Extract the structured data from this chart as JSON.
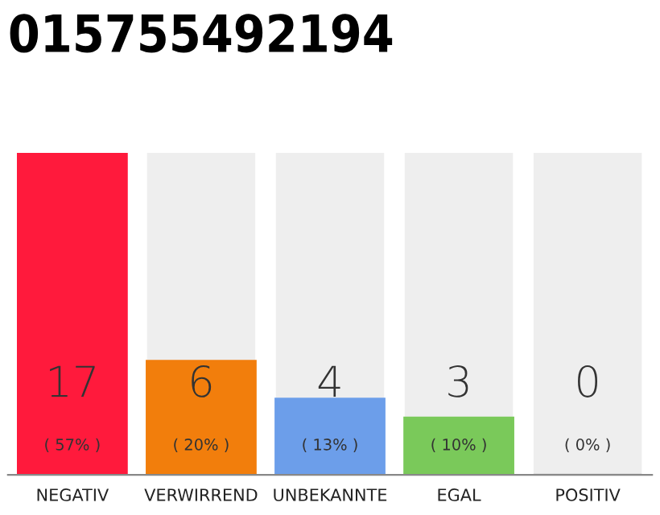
{
  "chart_data": {
    "type": "bar",
    "title": "015755492194",
    "categories": [
      "NEGATIV",
      "VERWIRREND",
      "UNBEKANNTE",
      "EGAL",
      "POSITIV"
    ],
    "values": [
      17,
      6,
      4,
      3,
      0
    ],
    "colors": [
      "#ff1a3c",
      "#f27e0c",
      "#6c9eea",
      "#7ac95a",
      "#d0d0d0"
    ],
    "ylim": [
      0,
      17
    ],
    "tick_labels": "x",
    "grid": false,
    "data_labels": true,
    "annotations": [
      "( 57% )",
      "( 20% )",
      "( 13% )",
      "( 10% )",
      "( 0% )"
    ]
  }
}
